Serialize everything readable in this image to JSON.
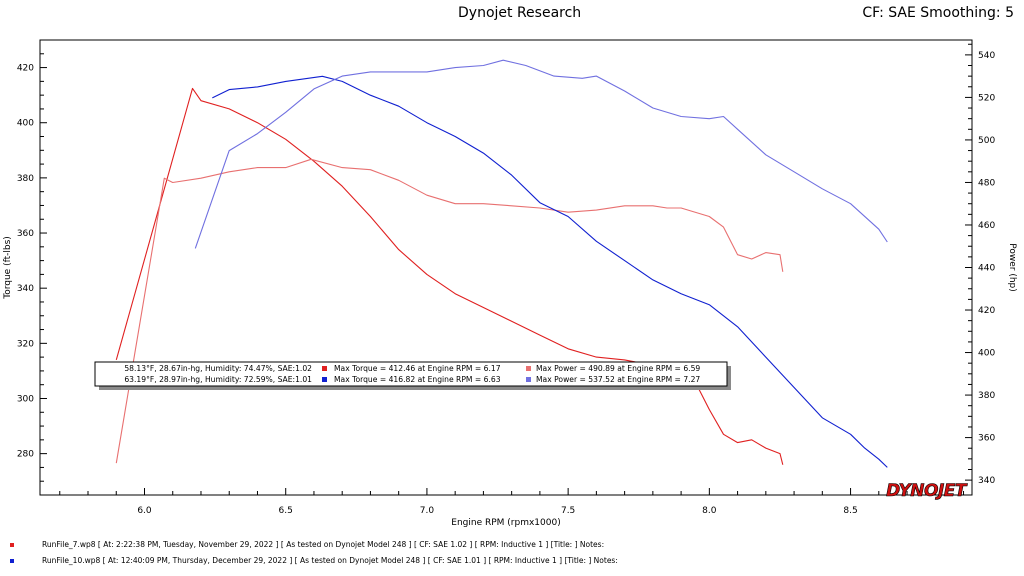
{
  "header": {
    "title": "Dynojet Research",
    "cf_info": "CF: SAE Smoothing: 5"
  },
  "logo": "DYNOJET",
  "legend": {
    "rows": [
      {
        "conditions": "58.13°F, 28.67in-hg, Humidity: 74.47%, SAE:1.02",
        "torque_color": "#e02020",
        "torque_text": "Max Torque = 412.46 at Engine RPM = 6.17",
        "power_color": "#e87070",
        "power_text": "Max Power = 490.89 at Engine RPM = 6.59"
      },
      {
        "conditions": "63.19°F, 28.97in-hg, Humidity: 72.59%, SAE:1.01",
        "torque_color": "#1020d0",
        "torque_text": "Max Torque = 416.82 at Engine RPM = 6.63",
        "power_color": "#7070e0",
        "power_text": "Max Power = 537.52 at Engine RPM = 7.27"
      }
    ]
  },
  "footer": {
    "runs": [
      {
        "color": "#e02020",
        "text": "RunFile_7.wp8 [ At: 2:22:38 PM, Tuesday, November 29, 2022 ] [ As tested on Dynojet Model 248 ] [ CF: SAE 1.02 ] [ RPM: Inductive 1 ] [Title: ] Notes:"
      },
      {
        "color": "#1020d0",
        "text": "RunFile_10.wp8 [ At: 12:40:09 PM, Thursday, December 29, 2022 ] [ As tested on Dynojet Model 248 ] [ CF: SAE 1.01 ] [ RPM: Inductive 1 ] [Title: ] Notes:"
      }
    ]
  },
  "chart_data": {
    "type": "line",
    "title": "Dynojet Research",
    "xlabel": "Engine RPM (rpmx1000)",
    "ylabel": "Torque (ft-lbs)",
    "y2label": "Power (hp)",
    "xlim": [
      5.63,
      8.93
    ],
    "ylim": [
      265,
      430
    ],
    "y2lim": [
      333,
      547
    ],
    "xticks": [
      "6.0",
      "6.5",
      "7.0",
      "7.5",
      "8.0",
      "8.5"
    ],
    "yticks": [
      "280",
      "300",
      "320",
      "340",
      "360",
      "380",
      "400",
      "420"
    ],
    "y2ticks": [
      "340",
      "360",
      "380",
      "400",
      "420",
      "440",
      "460",
      "480",
      "500",
      "520",
      "540"
    ],
    "grid": false,
    "legend_position": "center-left",
    "series": [
      {
        "name": "Max Torque",
        "run": "RunFile_7.wp8",
        "axis": "left",
        "color": "#e02020",
        "x": [
          5.9,
          6.17,
          6.2,
          6.3,
          6.4,
          6.5,
          6.6,
          6.7,
          6.8,
          6.9,
          7.0,
          7.1,
          7.2,
          7.3,
          7.4,
          7.5,
          7.6,
          7.7,
          7.8,
          7.9,
          7.95,
          8.0,
          8.05,
          8.1,
          8.15,
          8.2,
          8.25,
          8.26
        ],
        "y": [
          314,
          412.46,
          408,
          405,
          400,
          394,
          386,
          377,
          366,
          354,
          345,
          338,
          333,
          328,
          323,
          318,
          315,
          314,
          312,
          308,
          306,
          296,
          287,
          284,
          285,
          282,
          280,
          276
        ]
      },
      {
        "name": "Max Power",
        "run": "RunFile_7.wp8",
        "axis": "right",
        "color": "#e87070",
        "x": [
          5.9,
          6.07,
          6.1,
          6.2,
          6.3,
          6.4,
          6.5,
          6.59,
          6.7,
          6.8,
          6.9,
          7.0,
          7.1,
          7.2,
          7.3,
          7.4,
          7.5,
          7.6,
          7.7,
          7.8,
          7.85,
          7.9,
          8.0,
          8.05,
          8.1,
          8.15,
          8.2,
          8.25,
          8.26
        ],
        "y": [
          348,
          482,
          480,
          482,
          485,
          487,
          487,
          490.89,
          487,
          486,
          481,
          474,
          470,
          470,
          469,
          468,
          466,
          467,
          469,
          469,
          468,
          468,
          464,
          459,
          446,
          444,
          447,
          446,
          438
        ]
      },
      {
        "name": "Max Torque",
        "run": "RunFile_10.wp8",
        "axis": "left",
        "color": "#1020d0",
        "x": [
          6.24,
          6.3,
          6.4,
          6.5,
          6.63,
          6.7,
          6.8,
          6.9,
          7.0,
          7.1,
          7.2,
          7.3,
          7.4,
          7.5,
          7.6,
          7.7,
          7.8,
          7.9,
          8.0,
          8.1,
          8.2,
          8.3,
          8.4,
          8.5,
          8.55,
          8.6,
          8.63
        ],
        "y": [
          409,
          412,
          413,
          415,
          416.82,
          415,
          410,
          406,
          400,
          395,
          389,
          381,
          371,
          366,
          357,
          350,
          343,
          338,
          334,
          326,
          315,
          304,
          293,
          287,
          282,
          278,
          275
        ]
      },
      {
        "name": "Max Power",
        "run": "RunFile_10.wp8",
        "axis": "right",
        "color": "#7070e0",
        "x": [
          6.18,
          6.3,
          6.4,
          6.5,
          6.6,
          6.7,
          6.8,
          6.9,
          7.0,
          7.1,
          7.2,
          7.27,
          7.35,
          7.45,
          7.55,
          7.6,
          7.7,
          7.8,
          7.9,
          8.0,
          8.05,
          8.1,
          8.2,
          8.3,
          8.4,
          8.5,
          8.6,
          8.63
        ],
        "y": [
          449,
          495,
          503,
          513,
          524,
          530,
          532,
          532,
          532,
          534,
          535,
          537.52,
          535,
          530,
          529,
          530,
          523,
          515,
          511,
          510,
          511,
          505,
          493,
          485,
          477,
          470,
          458,
          452
        ]
      }
    ]
  }
}
